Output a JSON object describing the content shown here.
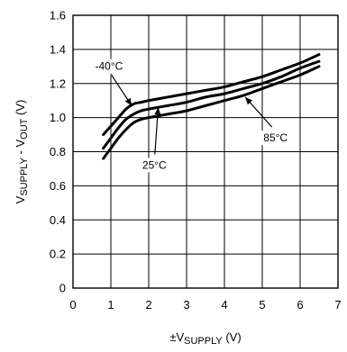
{
  "chart_data": {
    "type": "line",
    "title": "",
    "xlabel": {
      "prefix": "±V",
      "subscript": "SUPPLY",
      "suffix": " (V)"
    },
    "ylabel": {
      "part1": "V",
      "sub1": "SUPPLY",
      "middle": " - V",
      "sub2": "OUT",
      "suffix": " (V)"
    },
    "xlim": [
      0,
      7
    ],
    "ylim": [
      0,
      1.6
    ],
    "x_ticks": [
      "0",
      "1",
      "2",
      "3",
      "4",
      "5",
      "6",
      "7"
    ],
    "y_ticks": [
      "0",
      "0.2",
      "0.4",
      "0.6",
      "0.8",
      "1.0",
      "1.2",
      "1.4",
      "1.6"
    ],
    "grid": true,
    "legend": "none",
    "line_color": "#000000",
    "series": [
      {
        "name": "-40°C",
        "x": [
          0.8,
          1.0,
          1.2,
          1.4,
          1.6,
          1.8,
          2.0,
          2.5,
          3.0,
          3.5,
          4.0,
          4.5,
          5.0,
          5.5,
          6.0,
          6.5
        ],
        "y": [
          0.9,
          0.95,
          1.0,
          1.05,
          1.08,
          1.09,
          1.1,
          1.12,
          1.14,
          1.16,
          1.18,
          1.21,
          1.24,
          1.28,
          1.32,
          1.37
        ]
      },
      {
        "name": "25°C",
        "x": [
          0.8,
          1.0,
          1.2,
          1.4,
          1.6,
          1.8,
          2.0,
          2.5,
          3.0,
          3.5,
          4.0,
          4.5,
          5.0,
          5.5,
          6.0,
          6.5
        ],
        "y": [
          0.82,
          0.88,
          0.94,
          0.99,
          1.02,
          1.04,
          1.05,
          1.07,
          1.09,
          1.12,
          1.14,
          1.17,
          1.2,
          1.24,
          1.29,
          1.33
        ]
      },
      {
        "name": "85°C",
        "x": [
          0.8,
          1.0,
          1.2,
          1.4,
          1.6,
          1.8,
          2.0,
          2.5,
          3.0,
          3.5,
          4.0,
          4.5,
          5.0,
          5.5,
          6.0,
          6.5
        ],
        "y": [
          0.76,
          0.82,
          0.88,
          0.93,
          0.97,
          0.99,
          1.0,
          1.02,
          1.04,
          1.07,
          1.1,
          1.13,
          1.17,
          1.21,
          1.25,
          1.3
        ]
      }
    ],
    "annotations": [
      {
        "series_index": 0,
        "text": "-40°C",
        "point": [
          1.55,
          1.07
        ],
        "label_at": [
          0.95,
          1.28
        ]
      },
      {
        "series_index": 1,
        "text": "25°C",
        "point": [
          2.25,
          1.06
        ],
        "label_at": [
          2.15,
          0.7
        ]
      },
      {
        "series_index": 2,
        "text": "85°C",
        "point": [
          4.55,
          1.12
        ],
        "label_at": [
          5.35,
          0.86
        ]
      }
    ]
  }
}
